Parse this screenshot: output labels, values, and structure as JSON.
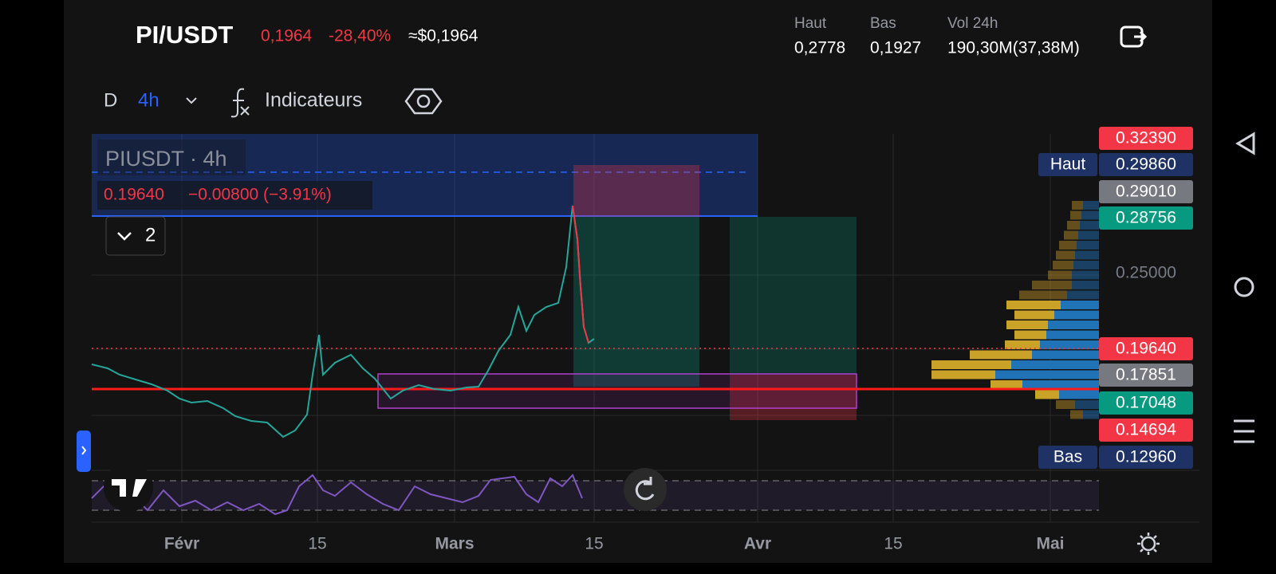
{
  "header": {
    "pair": "PI/USDT",
    "price": "0,1964",
    "change": "-28,40%",
    "usd_price": "≈$0,1964"
  },
  "stats": [
    {
      "label": "Haut",
      "value": "0,2778"
    },
    {
      "label": "Bas",
      "value": "0,1927"
    },
    {
      "label": "Vol 24h",
      "value": "190,30M(37,38M)"
    }
  ],
  "toolbar": {
    "daily": "D",
    "interval": "4h",
    "indicators": "Indicateurs"
  },
  "legend": {
    "title": "PIUSDT · 4h",
    "price": "0.19640",
    "change": "−0.00800 (−3.91%)",
    "collapsed_count": "2"
  },
  "price_scale": [
    {
      "text": "0.32390"
    },
    {
      "tag": "Haut",
      "text": "0.29860"
    },
    {
      "text": "0.29010"
    },
    {
      "text": "0.28756"
    },
    {
      "text": "0.25000"
    },
    {
      "text": "0.19640"
    },
    {
      "text": "0.17851"
    },
    {
      "text": "0.17048"
    },
    {
      "text": "0.14694"
    },
    {
      "tag": "Bas",
      "text": "0.12960"
    }
  ],
  "time_axis": [
    "Févr",
    "15",
    "Mars",
    "15",
    "Avr",
    "15",
    "Mai"
  ]
}
